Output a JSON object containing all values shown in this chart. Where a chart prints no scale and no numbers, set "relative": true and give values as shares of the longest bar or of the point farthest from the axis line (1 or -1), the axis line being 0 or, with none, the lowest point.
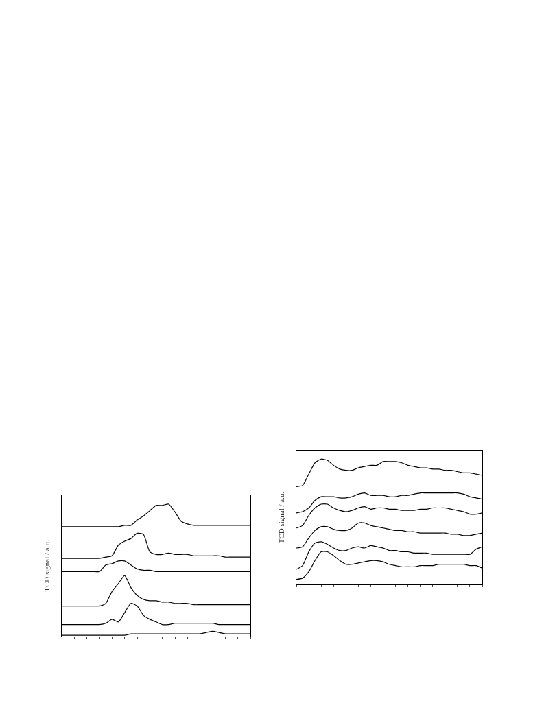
{
  "chart_data": [
    {
      "type": "line",
      "relative": true,
      "ylabel": "TCD signal / a.u.",
      "categories": [
        null,
        null,
        null,
        null,
        null,
        null,
        null,
        null,
        null,
        null,
        null,
        null,
        null,
        null,
        null,
        null,
        null,
        null,
        null,
        null,
        null,
        null,
        null,
        null,
        null,
        null,
        null,
        null,
        null,
        null,
        null
      ],
      "series": [
        {
          "color": "#000000",
          "values": [
            0.83,
            0.83,
            0.83,
            0.83,
            0.83,
            0.83,
            0.83,
            0.83,
            0.83,
            0.83,
            0.84,
            0.84,
            0.88,
            0.91,
            0.95,
            0.99,
            0.99,
            1.0,
            0.94,
            0.87,
            0.85,
            0.84,
            0.84,
            0.84,
            0.84,
            0.84,
            0.84,
            0.84,
            0.84,
            0.84,
            0.84
          ]
        },
        {
          "color": "#000000",
          "values": [
            0.59,
            0.59,
            0.59,
            0.59,
            0.59,
            0.59,
            0.59,
            0.6,
            0.61,
            0.69,
            0.72,
            0.74,
            0.78,
            0.77,
            0.64,
            0.62,
            0.62,
            0.63,
            0.62,
            0.62,
            0.62,
            0.61,
            0.61,
            0.61,
            0.61,
            0.61,
            0.6,
            0.6,
            0.6,
            0.6,
            0.6
          ]
        },
        {
          "color": "#000000",
          "values": [
            0.49,
            0.49,
            0.49,
            0.49,
            0.49,
            0.49,
            0.49,
            0.54,
            0.55,
            0.57,
            0.57,
            0.54,
            0.51,
            0.5,
            0.5,
            0.49,
            0.49,
            0.49,
            0.49,
            0.49,
            0.49,
            0.49,
            0.49,
            0.49,
            0.49,
            0.49,
            0.49,
            0.49,
            0.49,
            0.49,
            0.49
          ]
        },
        {
          "color": "#000000",
          "values": [
            0.23,
            0.23,
            0.23,
            0.23,
            0.23,
            0.23,
            0.23,
            0.25,
            0.34,
            0.4,
            0.46,
            0.37,
            0.31,
            0.28,
            0.27,
            0.27,
            0.26,
            0.26,
            0.25,
            0.25,
            0.25,
            0.24,
            0.24,
            0.24,
            0.24,
            0.24,
            0.24,
            0.24,
            0.24,
            0.24,
            0.24
          ]
        },
        {
          "color": "#000000",
          "values": [
            0.09,
            0.09,
            0.09,
            0.09,
            0.09,
            0.09,
            0.09,
            0.1,
            0.13,
            0.11,
            0.18,
            0.25,
            0.23,
            0.16,
            0.13,
            0.11,
            0.09,
            0.09,
            0.1,
            0.1,
            0.1,
            0.1,
            0.1,
            0.1,
            0.1,
            0.09,
            0.09,
            0.09,
            0.09,
            0.09,
            0.09
          ]
        },
        {
          "color": "#000000",
          "values": [
            0.01,
            0.01,
            0.01,
            0.01,
            0.01,
            0.01,
            0.01,
            0.01,
            0.01,
            0.01,
            0.01,
            0.02,
            0.02,
            0.02,
            0.02,
            0.02,
            0.02,
            0.02,
            0.02,
            0.02,
            0.02,
            0.02,
            0.02,
            0.03,
            0.04,
            0.03,
            0.02,
            0.02,
            0.02,
            0.02,
            0.02
          ]
        }
      ]
    },
    {
      "type": "line",
      "relative": true,
      "ylabel": "TCD signal / a.u.",
      "categories": [
        null,
        null,
        null,
        null,
        null,
        null,
        null,
        null,
        null,
        null,
        null,
        null,
        null,
        null,
        null,
        null,
        null,
        null,
        null,
        null,
        null,
        null,
        null,
        null,
        null,
        null,
        null,
        null,
        null,
        null,
        null
      ],
      "series": [
        {
          "color": "#000000",
          "values": [
            0.78,
            0.79,
            0.88,
            0.97,
            1.0,
            0.99,
            0.95,
            0.92,
            0.91,
            0.91,
            0.93,
            0.94,
            0.95,
            0.95,
            0.98,
            0.98,
            0.98,
            0.97,
            0.95,
            0.94,
            0.93,
            0.93,
            0.92,
            0.92,
            0.91,
            0.91,
            0.9,
            0.89,
            0.89,
            0.88,
            0.87
          ]
        },
        {
          "color": "#000000",
          "values": [
            0.57,
            0.58,
            0.61,
            0.67,
            0.7,
            0.7,
            0.7,
            0.69,
            0.69,
            0.7,
            0.72,
            0.73,
            0.71,
            0.71,
            0.71,
            0.7,
            0.7,
            0.71,
            0.71,
            0.72,
            0.73,
            0.73,
            0.73,
            0.73,
            0.73,
            0.73,
            0.73,
            0.72,
            0.7,
            0.69,
            0.68
          ]
        },
        {
          "color": "#000000",
          "values": [
            0.45,
            0.47,
            0.55,
            0.61,
            0.64,
            0.64,
            0.61,
            0.59,
            0.58,
            0.59,
            0.61,
            0.62,
            0.6,
            0.61,
            0.61,
            0.6,
            0.6,
            0.59,
            0.59,
            0.59,
            0.6,
            0.6,
            0.61,
            0.61,
            0.61,
            0.6,
            0.59,
            0.58,
            0.56,
            0.56,
            0.57
          ]
        },
        {
          "color": "#000000",
          "values": [
            0.29,
            0.3,
            0.37,
            0.43,
            0.46,
            0.46,
            0.44,
            0.43,
            0.43,
            0.45,
            0.49,
            0.49,
            0.47,
            0.46,
            0.45,
            0.44,
            0.43,
            0.43,
            0.42,
            0.42,
            0.41,
            0.41,
            0.41,
            0.41,
            0.41,
            0.4,
            0.4,
            0.39,
            0.39,
            0.4,
            0.41
          ]
        },
        {
          "color": "#000000",
          "values": [
            0.12,
            0.15,
            0.26,
            0.33,
            0.34,
            0.32,
            0.29,
            0.27,
            0.27,
            0.29,
            0.3,
            0.29,
            0.31,
            0.3,
            0.29,
            0.27,
            0.27,
            0.26,
            0.26,
            0.25,
            0.25,
            0.25,
            0.24,
            0.24,
            0.24,
            0.24,
            0.24,
            0.24,
            0.24,
            0.28,
            0.3
          ]
        },
        {
          "color": "#000000",
          "values": [
            0.04,
            0.05,
            0.1,
            0.19,
            0.26,
            0.26,
            0.23,
            0.19,
            0.16,
            0.16,
            0.17,
            0.18,
            0.19,
            0.19,
            0.18,
            0.16,
            0.15,
            0.14,
            0.14,
            0.14,
            0.15,
            0.15,
            0.15,
            0.16,
            0.16,
            0.16,
            0.16,
            0.16,
            0.15,
            0.15,
            0.13
          ]
        }
      ]
    }
  ]
}
